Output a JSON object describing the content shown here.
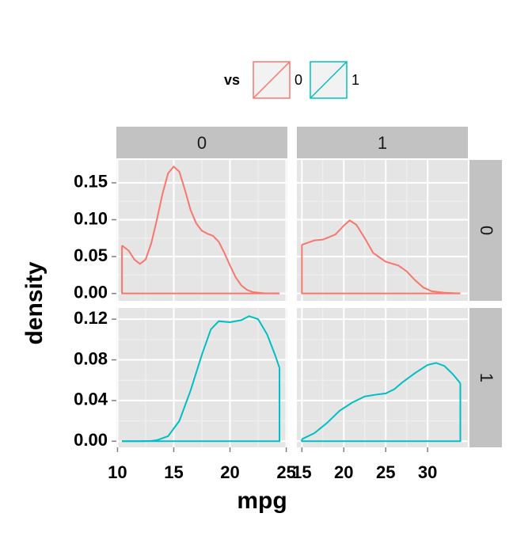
{
  "chart_data": {
    "type": "density",
    "x_label": "mpg",
    "y_label": "density",
    "legend": {
      "title": "vs",
      "position": "top"
    },
    "grid": true,
    "facet_columns": [
      {
        "label": "0",
        "xlim": [
          9.9,
          25.1
        ],
        "xticks": [
          10,
          15,
          20,
          25
        ]
      },
      {
        "label": "1",
        "xlim": [
          14.4,
          34.8
        ],
        "xticks": [
          15,
          20,
          25,
          30
        ]
      }
    ],
    "facet_rows": [
      {
        "label": "0",
        "ylim": [
          -0.01,
          0.181
        ],
        "yticks": [
          {
            "value": 0,
            "label": "0.00"
          },
          {
            "value": 0.05,
            "label": "0.05"
          },
          {
            "value": 0.1,
            "label": "0.10"
          },
          {
            "value": 0.15,
            "label": "0.15"
          }
        ]
      },
      {
        "label": "1",
        "ylim": [
          -0.006,
          0.131
        ],
        "yticks": [
          {
            "value": 0,
            "label": "0.00"
          },
          {
            "value": 0.04,
            "label": "0.04"
          },
          {
            "value": 0.08,
            "label": "0.08"
          },
          {
            "value": 0.12,
            "label": "0.12"
          }
        ]
      }
    ],
    "series": [
      {
        "name": "0",
        "color": "#F8766D",
        "panels": [
          {
            "x": [
              10.4,
              11,
              11.5,
              12,
              12.5,
              13,
              13.5,
              14,
              14.5,
              15,
              15.5,
              16,
              16.5,
              17,
              17.5,
              18,
              18.5,
              19,
              19.5,
              20,
              20.5,
              21,
              21.5,
              22,
              23,
              24.4
            ],
            "values": [
              0.065,
              0.058,
              0.046,
              0.04,
              0.046,
              0.068,
              0.1,
              0.135,
              0.163,
              0.172,
              0.165,
              0.14,
              0.113,
              0.095,
              0.085,
              0.081,
              0.078,
              0.07,
              0.055,
              0.038,
              0.022,
              0.011,
              0.005,
              0.002,
              0.0003,
              0
            ]
          },
          {
            "x": [
              15,
              16.5,
              17.5,
              19,
              20,
              20.7,
              21.5,
              22.5,
              23.5,
              25,
              26.5,
              27.5,
              28.5,
              29.5,
              30.5,
              32,
              33.9
            ],
            "values": [
              0.066,
              0.072,
              0.073,
              0.08,
              0.092,
              0.099,
              0.093,
              0.075,
              0.055,
              0.043,
              0.038,
              0.03,
              0.018,
              0.008,
              0.003,
              0.001,
              0
            ]
          }
        ]
      },
      {
        "name": "1",
        "color": "#00BFC4",
        "panels": [
          {
            "x": [
              10.4,
              12,
              13,
              13.5,
              14.5,
              15.5,
              16.5,
              17.5,
              18.3,
              19,
              20,
              21,
              21.7,
              22.5,
              23.3,
              24,
              24.4
            ],
            "values": [
              0,
              0,
              0.0003,
              0.001,
              0.005,
              0.02,
              0.05,
              0.085,
              0.11,
              0.118,
              0.117,
              0.119,
              0.123,
              0.12,
              0.105,
              0.085,
              0.072
            ]
          },
          {
            "x": [
              15,
              16.5,
              18,
              19.5,
              21,
              22.5,
              24,
              25,
              26,
              27,
              28.5,
              30,
              31,
              32,
              33,
              33.9
            ],
            "values": [
              0.002,
              0.008,
              0.018,
              0.03,
              0.038,
              0.044,
              0.046,
              0.047,
              0.051,
              0.058,
              0.067,
              0.075,
              0.077,
              0.074,
              0.066,
              0.057
            ]
          }
        ]
      }
    ]
  }
}
